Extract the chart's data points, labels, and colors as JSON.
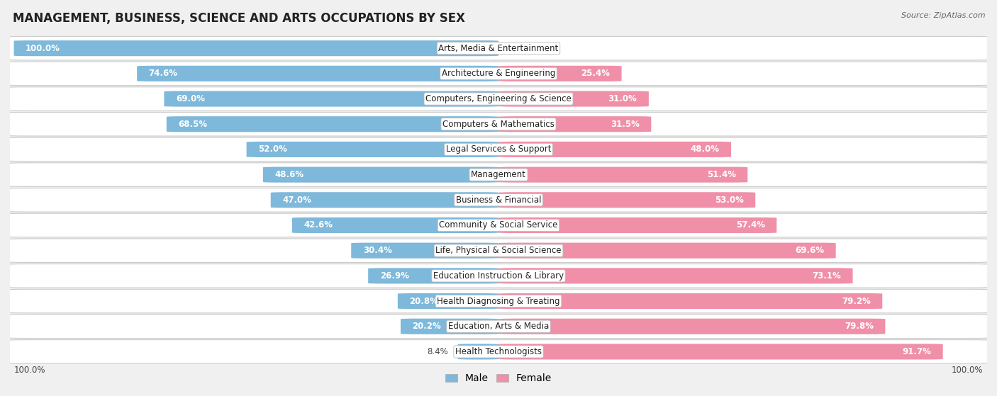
{
  "title": "MANAGEMENT, BUSINESS, SCIENCE AND ARTS OCCUPATIONS BY SEX",
  "source": "Source: ZipAtlas.com",
  "categories": [
    "Arts, Media & Entertainment",
    "Architecture & Engineering",
    "Computers, Engineering & Science",
    "Computers & Mathematics",
    "Legal Services & Support",
    "Management",
    "Business & Financial",
    "Community & Social Service",
    "Life, Physical & Social Science",
    "Education Instruction & Library",
    "Health Diagnosing & Treating",
    "Education, Arts & Media",
    "Health Technologists"
  ],
  "male": [
    100.0,
    74.6,
    69.0,
    68.5,
    52.0,
    48.6,
    47.0,
    42.6,
    30.4,
    26.9,
    20.8,
    20.2,
    8.4
  ],
  "female": [
    0.0,
    25.4,
    31.0,
    31.5,
    48.0,
    51.4,
    53.0,
    57.4,
    69.6,
    73.1,
    79.2,
    79.8,
    91.7
  ],
  "male_color": "#7EB8DA",
  "female_color": "#F090A8",
  "bg_color": "#f0f0f0",
  "row_bg_color": "#ffffff",
  "title_fontsize": 12,
  "label_fontsize": 8.5,
  "value_fontsize": 8.5,
  "legend_fontsize": 10
}
